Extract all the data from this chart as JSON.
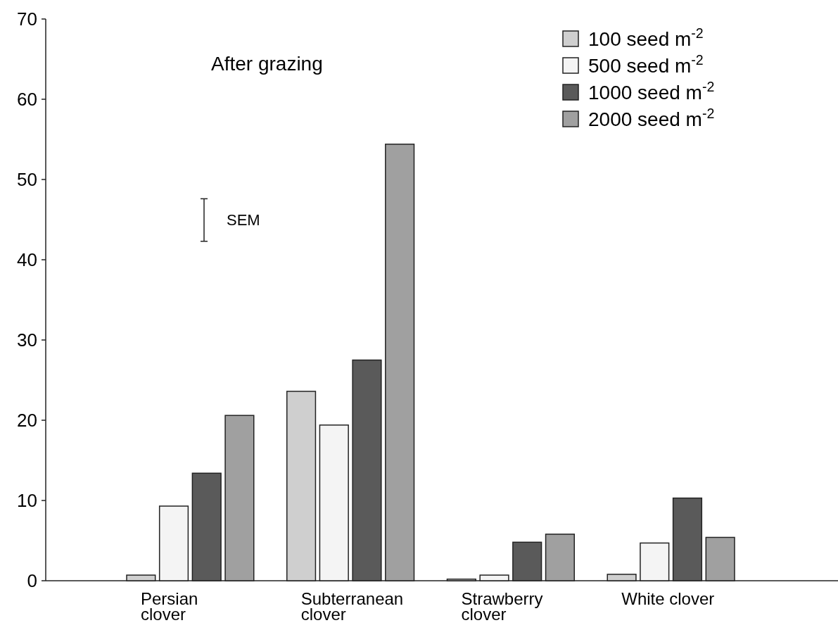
{
  "chart_data": {
    "type": "bar",
    "title": "After grazing",
    "categories": [
      "Persian\nclover",
      "Subterranean\nclover",
      "Strawberry\nclover",
      "White clover"
    ],
    "series": [
      {
        "name": "100 seed m$^{-2}$",
        "color": "#cfcfcf",
        "values": [
          0.7,
          23.6,
          0.2,
          0.8
        ]
      },
      {
        "name": "500 seed m$^{-2}$",
        "color": "#f4f4f4",
        "values": [
          9.3,
          19.4,
          0.7,
          4.7
        ]
      },
      {
        "name": "1000 seed m$^{-2}$",
        "color": "#5a5a5a",
        "values": [
          13.4,
          27.5,
          4.8,
          10.3
        ]
      },
      {
        "name": "2000 seed m$^{-2}$",
        "color": "#a0a0a0",
        "values": [
          20.6,
          54.4,
          5.8,
          5.4
        ]
      }
    ],
    "ylim": [
      0,
      70
    ],
    "yticks": [
      0,
      10,
      20,
      30,
      40,
      50,
      60,
      70
    ],
    "legend": "top right",
    "annotations": [
      "SEM"
    ]
  }
}
